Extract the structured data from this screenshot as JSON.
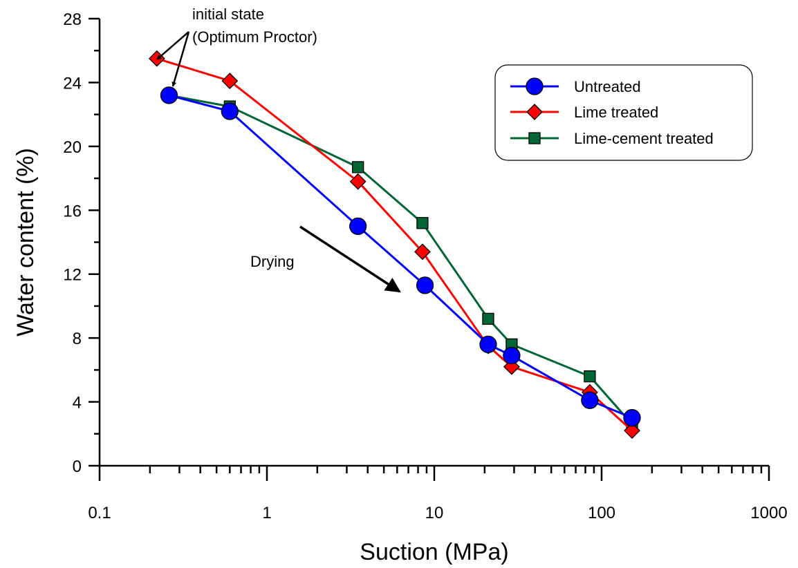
{
  "chart_data": {
    "type": "line",
    "xscale": "log",
    "xlabel": "Suction (MPa)",
    "ylabel": "Water content (%)",
    "xlim": [
      0.1,
      1000
    ],
    "ylim": [
      0,
      28
    ],
    "x_ticks": [
      "0.1",
      "1",
      "10",
      "100",
      "1000"
    ],
    "y_ticks": [
      "0",
      "4",
      "8",
      "12",
      "16",
      "20",
      "24",
      "28"
    ],
    "grid": false,
    "legend_position": "top-right",
    "series": [
      {
        "name": "Untreated",
        "marker": "circle",
        "color": "#0000ff",
        "x": [
          0.26,
          0.6,
          3.5,
          8.8,
          21,
          29,
          85,
          152
        ],
        "y": [
          23.2,
          22.2,
          15.0,
          11.3,
          7.6,
          6.9,
          4.1,
          3.0
        ]
      },
      {
        "name": "Lime treated",
        "marker": "diamond",
        "color": "#ff0000",
        "x": [
          0.22,
          0.6,
          3.5,
          8.5,
          21,
          29,
          85,
          152
        ],
        "y": [
          25.5,
          24.1,
          17.8,
          13.4,
          7.5,
          6.2,
          4.6,
          2.2
        ]
      },
      {
        "name": "Lime-cement treated",
        "marker": "square",
        "color": "#006633",
        "x": [
          0.26,
          0.6,
          3.5,
          8.5,
          21,
          29,
          85,
          152
        ],
        "y": [
          23.2,
          22.5,
          18.7,
          15.2,
          9.2,
          7.6,
          5.6,
          2.6
        ]
      }
    ],
    "annotations": [
      {
        "name": "initial-state",
        "lines": [
          "initial state",
          "(Optimum Proctor)"
        ]
      },
      {
        "name": "drying",
        "lines": [
          "Drying"
        ]
      }
    ]
  }
}
